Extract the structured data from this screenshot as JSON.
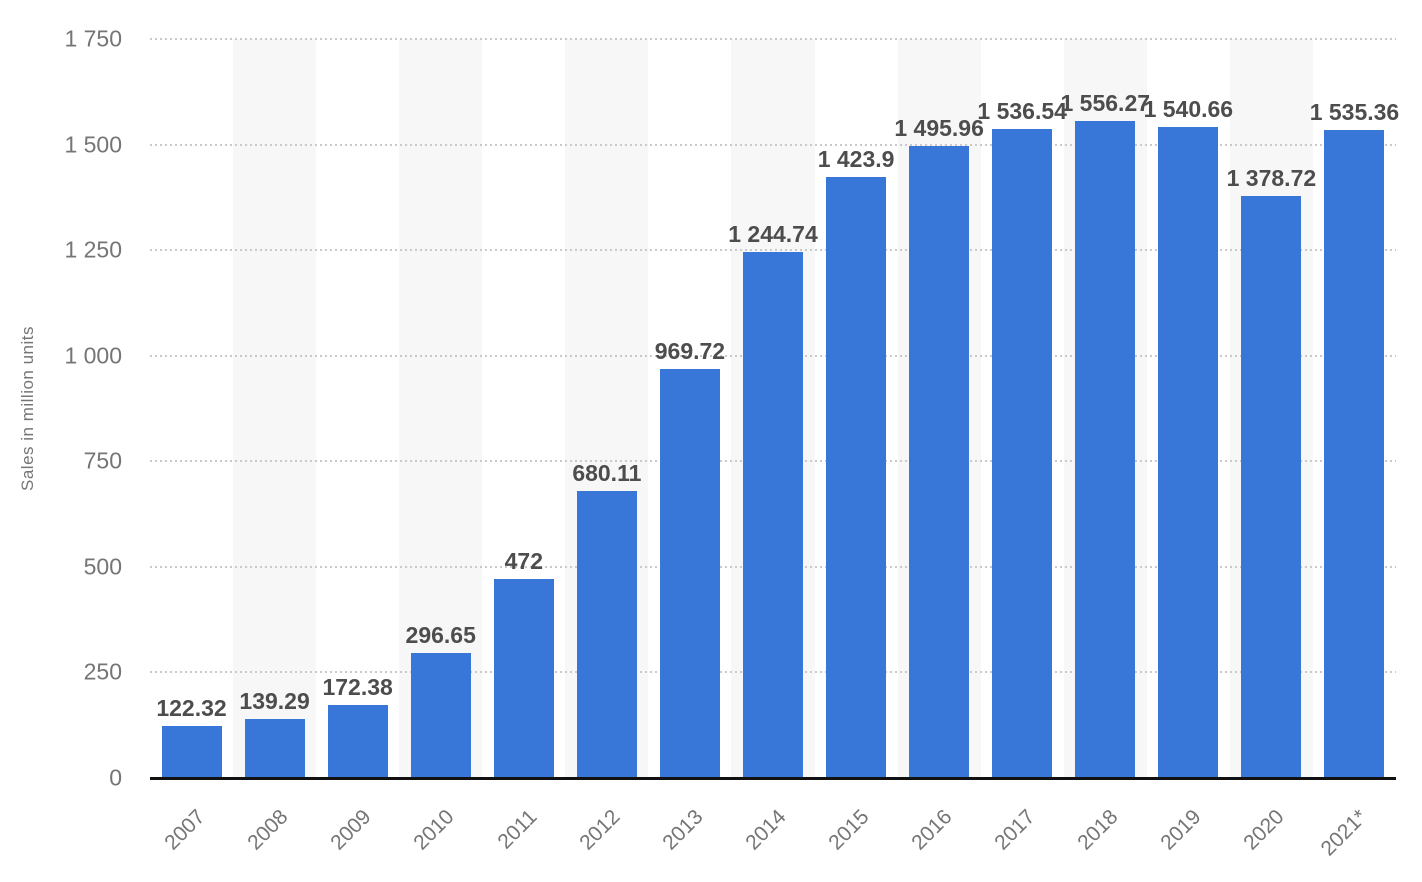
{
  "chart_data": {
    "type": "bar",
    "title": "",
    "xlabel": "",
    "ylabel": "Sales in million units",
    "ylim": [
      0,
      1750
    ],
    "grid": "dotted-horizontal",
    "legend": null,
    "plot_background": "alternating vertical stripes on even columns",
    "categories": [
      "2007",
      "2008",
      "2009",
      "2010",
      "2011",
      "2012",
      "2013",
      "2014",
      "2015",
      "2016",
      "2017",
      "2018",
      "2019",
      "2020",
      "2021*"
    ],
    "values": [
      122.32,
      139.29,
      172.38,
      296.65,
      472,
      680.11,
      969.72,
      1244.74,
      1423.9,
      1495.96,
      1536.54,
      1556.27,
      1540.66,
      1378.72,
      1535.36
    ],
    "value_labels": [
      "122.32",
      "139.29",
      "172.38",
      "296.65",
      "472",
      "680.11",
      "969.72",
      "1 244.74",
      "1 423.9",
      "1 495.96",
      "1 536.54",
      "1 556.27",
      "1 540.66",
      "1 378.72",
      "1 535.36"
    ],
    "y_tick_labels": [
      "0",
      "250",
      "500",
      "750",
      "1 000",
      "1 250",
      "1 500",
      "1 750"
    ],
    "y_tick_values": [
      0,
      250,
      500,
      750,
      1000,
      1250,
      1500,
      1750
    ],
    "colors": {
      "bar": "#3876d7",
      "column_stripe": "#f7f7f7",
      "gridline": "#c9c9c9",
      "axis_line": "#111111",
      "tick_text": "#757575",
      "value_text": "#4d4d4d"
    }
  }
}
